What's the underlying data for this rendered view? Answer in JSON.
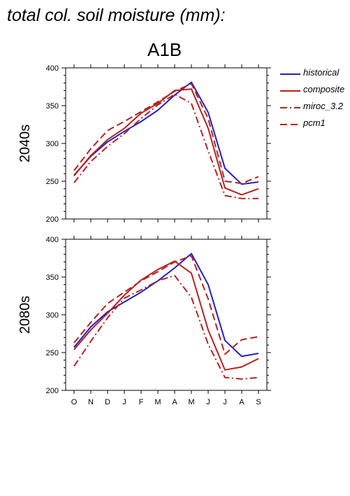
{
  "header": {
    "title": "total col. soil moisture (mm):",
    "scenario": "A1B"
  },
  "colors": {
    "historical": "#2222bb",
    "model": "#b22222"
  },
  "chart_data": [
    {
      "type": "line",
      "panel_label": "2040s",
      "categories": [
        "O",
        "N",
        "D",
        "J",
        "F",
        "M",
        "A",
        "M",
        "J",
        "J",
        "A",
        "S"
      ],
      "ylim": [
        200,
        400
      ],
      "yticks": [
        200,
        250,
        300,
        350,
        400
      ],
      "series": [
        {
          "name": "historical",
          "style": "solid",
          "values": [
            258,
            283,
            302,
            316,
            329,
            344,
            364,
            381,
            341,
            267,
            246,
            249
          ]
        },
        {
          "name": "composite",
          "style": "solid",
          "values": [
            257,
            284,
            305,
            320,
            340,
            353,
            370,
            372,
            320,
            241,
            232,
            240
          ]
        },
        {
          "name": "miroc_3.2",
          "style": "dashdot",
          "values": [
            248,
            276,
            296,
            313,
            333,
            351,
            365,
            353,
            290,
            231,
            227,
            227
          ]
        },
        {
          "name": "pcm1",
          "style": "dashed",
          "values": [
            264,
            293,
            317,
            329,
            342,
            355,
            369,
            379,
            333,
            250,
            247,
            256
          ]
        }
      ]
    },
    {
      "type": "line",
      "panel_label": "2080s",
      "categories": [
        "O",
        "N",
        "D",
        "J",
        "F",
        "M",
        "A",
        "M",
        "J",
        "J",
        "A",
        "S"
      ],
      "ylim": [
        200,
        400
      ],
      "yticks": [
        200,
        250,
        300,
        350,
        400
      ],
      "series": [
        {
          "name": "historical",
          "style": "solid",
          "values": [
            257,
            284,
            304,
            317,
            330,
            345,
            362,
            381,
            340,
            266,
            245,
            249
          ]
        },
        {
          "name": "composite",
          "style": "solid",
          "values": [
            254,
            280,
            302,
            326,
            346,
            360,
            371,
            355,
            280,
            227,
            231,
            242
          ]
        },
        {
          "name": "miroc_3.2",
          "style": "dashdot",
          "values": [
            232,
            265,
            296,
            322,
            333,
            345,
            352,
            323,
            261,
            217,
            215,
            217
          ]
        },
        {
          "name": "pcm1",
          "style": "dashed",
          "values": [
            263,
            290,
            315,
            330,
            345,
            357,
            370,
            378,
            321,
            248,
            267,
            271
          ]
        }
      ]
    }
  ]
}
